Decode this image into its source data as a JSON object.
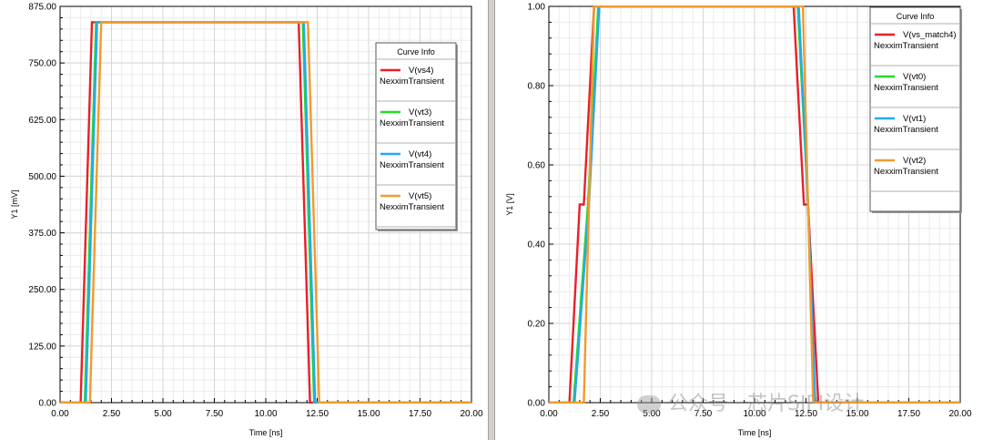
{
  "watermark": "公众号 · 芯片SIPI设计",
  "chart_data": [
    {
      "type": "line",
      "xlabel": "Time [ns]",
      "ylabel": "Y1 [mV]",
      "xlim": [
        0,
        20
      ],
      "ylim": [
        0,
        875
      ],
      "xticks": [
        0,
        2.5,
        5,
        7.5,
        10,
        12.5,
        15,
        17.5,
        20
      ],
      "yticks": [
        0,
        125,
        250,
        375,
        500,
        625,
        750,
        875
      ],
      "xtick_labels": [
        "0.00",
        "2.50",
        "5.00",
        "7.50",
        "10.00",
        "12.50",
        "15.00",
        "17.50",
        "20.00"
      ],
      "ytick_labels": [
        "0.00",
        "125.00",
        "250.00",
        "375.00",
        "500.00",
        "625.00",
        "750.00",
        "875.00"
      ],
      "grid": true,
      "legend": {
        "title": "Curve Info",
        "placement": "top-right"
      },
      "series": [
        {
          "name": "V(vs4)",
          "subtitle": "NexximTransient",
          "color": "#e8202a",
          "x": [
            0,
            1.0,
            1.55,
            11.6,
            12.15,
            20
          ],
          "y": [
            0,
            0,
            840,
            840,
            0,
            0
          ]
        },
        {
          "name": "V(vt3)",
          "subtitle": "NexximTransient",
          "color": "#22dd22",
          "x": [
            0,
            1.2,
            1.75,
            11.8,
            12.35,
            20
          ],
          "y": [
            0,
            0,
            840,
            840,
            0,
            0
          ]
        },
        {
          "name": "V(vt4)",
          "subtitle": "NexximTransient",
          "color": "#22aaee",
          "x": [
            0,
            1.25,
            1.8,
            11.85,
            12.4,
            20
          ],
          "y": [
            0,
            0,
            840,
            840,
            0,
            0
          ]
        },
        {
          "name": "V(vt5)",
          "subtitle": "NexximTransient",
          "color": "#f39a2b",
          "x": [
            0,
            1.45,
            2.0,
            12.05,
            12.6,
            20
          ],
          "y": [
            0,
            0,
            840,
            840,
            0,
            0
          ]
        }
      ]
    },
    {
      "type": "line",
      "xlabel": "Time [ns]",
      "ylabel": "Y1 [V]",
      "xlim": [
        0,
        20
      ],
      "ylim": [
        0,
        1
      ],
      "xticks": [
        0,
        2.5,
        5,
        7.5,
        10,
        12.5,
        15,
        17.5,
        20
      ],
      "yticks": [
        0,
        0.2,
        0.4,
        0.6,
        0.8,
        1.0
      ],
      "xtick_labels": [
        "0.00",
        "2.50",
        "5.00",
        "7.50",
        "10.00",
        "12.50",
        "15.00",
        "17.50",
        "20.00"
      ],
      "ytick_labels": [
        "0.00",
        "0.20",
        "0.40",
        "0.60",
        "0.80",
        "1.00"
      ],
      "grid": true,
      "legend": {
        "title": "Curve Info",
        "placement": "top-right"
      },
      "series": [
        {
          "name": "V(vs_match4)",
          "subtitle": "NexximTransient",
          "color": "#e8202a",
          "x": [
            0,
            1.0,
            1.5,
            1.7,
            2.2,
            11.9,
            12.4,
            12.6,
            13.1,
            20
          ],
          "y": [
            0,
            0,
            0.5,
            0.5,
            1.0,
            1.0,
            0.5,
            0.5,
            0,
            0
          ]
        },
        {
          "name": "V(vt0)",
          "subtitle": "NexximTransient",
          "color": "#22dd22",
          "x": [
            0,
            1.2,
            1.9,
            2.4,
            12.1,
            12.6,
            12.9,
            20
          ],
          "y": [
            0,
            0,
            0.5,
            1.0,
            1.0,
            0.5,
            0,
            0
          ]
        },
        {
          "name": "V(vt1)",
          "subtitle": "NexximTransient",
          "color": "#22aaee",
          "x": [
            0,
            1.25,
            1.95,
            2.45,
            12.15,
            12.6,
            12.95,
            20
          ],
          "y": [
            0,
            0,
            0.5,
            1.0,
            1.0,
            0.5,
            0,
            0
          ]
        },
        {
          "name": "V(vt2)",
          "subtitle": "NexximTransient",
          "color": "#f39a2b",
          "x": [
            0,
            1.7,
            2.2,
            12.35,
            12.85,
            20
          ],
          "y": [
            0,
            0,
            1.0,
            1.0,
            0,
            0
          ]
        }
      ]
    }
  ]
}
